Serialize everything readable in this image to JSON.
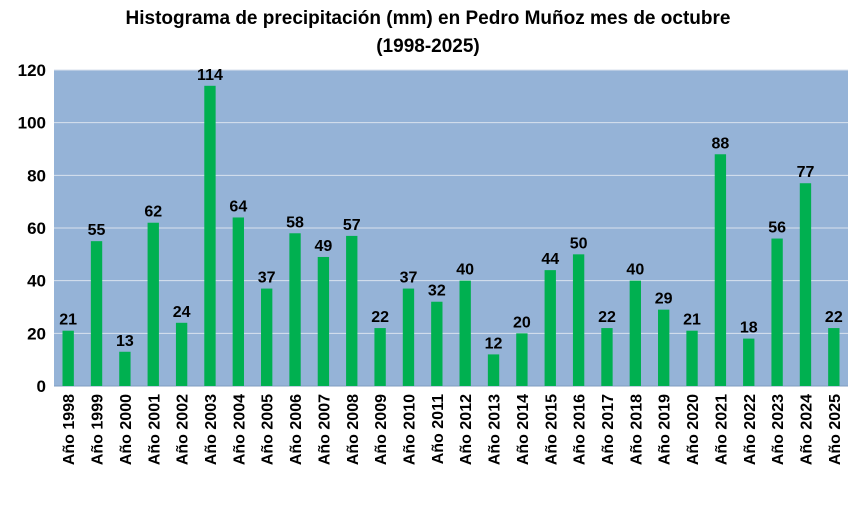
{
  "chart_data": {
    "type": "bar",
    "title_line1": "Histograma de precipitación (mm) en Pedro Muñoz mes de octubre",
    "title_line2": "(1998-2025)",
    "xlabel": "",
    "ylabel": "",
    "ylim": [
      0,
      120
    ],
    "yticks": [
      0,
      20,
      40,
      60,
      80,
      100,
      120
    ],
    "grid": true,
    "legend": "none",
    "categories": [
      "Año 1998",
      "Año 1999",
      "Año 2000",
      "Año 2001",
      "Año 2002",
      "Año 2003",
      "Año 2004",
      "Año 2005",
      "Año 2006",
      "Año 2007",
      "Año 2008",
      "Año 2009",
      "Año 2010",
      "Año 2011",
      "Año 2012",
      "Año 2013",
      "Año 2014",
      "Año 2015",
      "Año 2016",
      "Año 2017",
      "Año 2018",
      "Año 2019",
      "Año 2020",
      "Año 2021",
      "Año 2022",
      "Año 2023",
      "Año 2024",
      "Año 2025"
    ],
    "values": [
      21,
      55,
      13,
      62,
      24,
      114,
      64,
      37,
      58,
      49,
      57,
      22,
      37,
      32,
      40,
      12,
      20,
      44,
      50,
      22,
      40,
      29,
      21,
      88,
      18,
      56,
      77,
      22
    ],
    "colors": {
      "plot_background": "#95B3D7",
      "bar": "#00B050",
      "grid": "#D9E2EE",
      "text": "#000000"
    }
  }
}
